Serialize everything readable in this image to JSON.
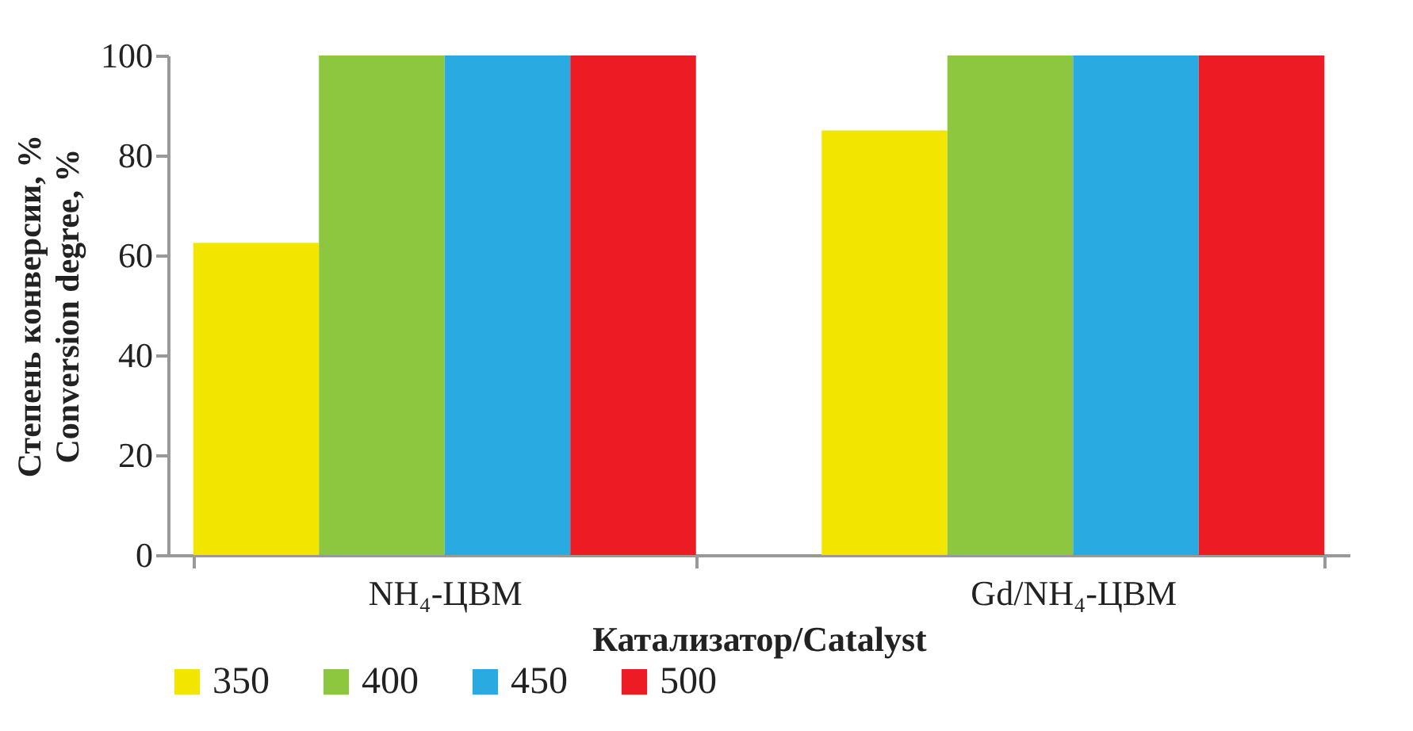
{
  "chart_data": {
    "type": "bar",
    "xlabel": "Катализатор/Catalyst",
    "ylabel": "Степень конверсии, %\nConversion degree, %",
    "categories": [
      "NH₄-ЦВМ",
      "Gd/NH₄-ЦВМ"
    ],
    "series": [
      {
        "name": "350",
        "color": "#f2e600",
        "values": [
          62.5,
          85
        ]
      },
      {
        "name": "400",
        "color": "#8dc63f",
        "values": [
          100,
          100
        ]
      },
      {
        "name": "450",
        "color": "#29abe2",
        "values": [
          100,
          100
        ]
      },
      {
        "name": "500",
        "color": "#ed1c24",
        "values": [
          100,
          100
        ]
      }
    ],
    "ylim": [
      0,
      100
    ],
    "yticks": [
      0,
      20,
      40,
      60,
      80,
      100
    ],
    "grid": false,
    "legend": "bottom"
  }
}
